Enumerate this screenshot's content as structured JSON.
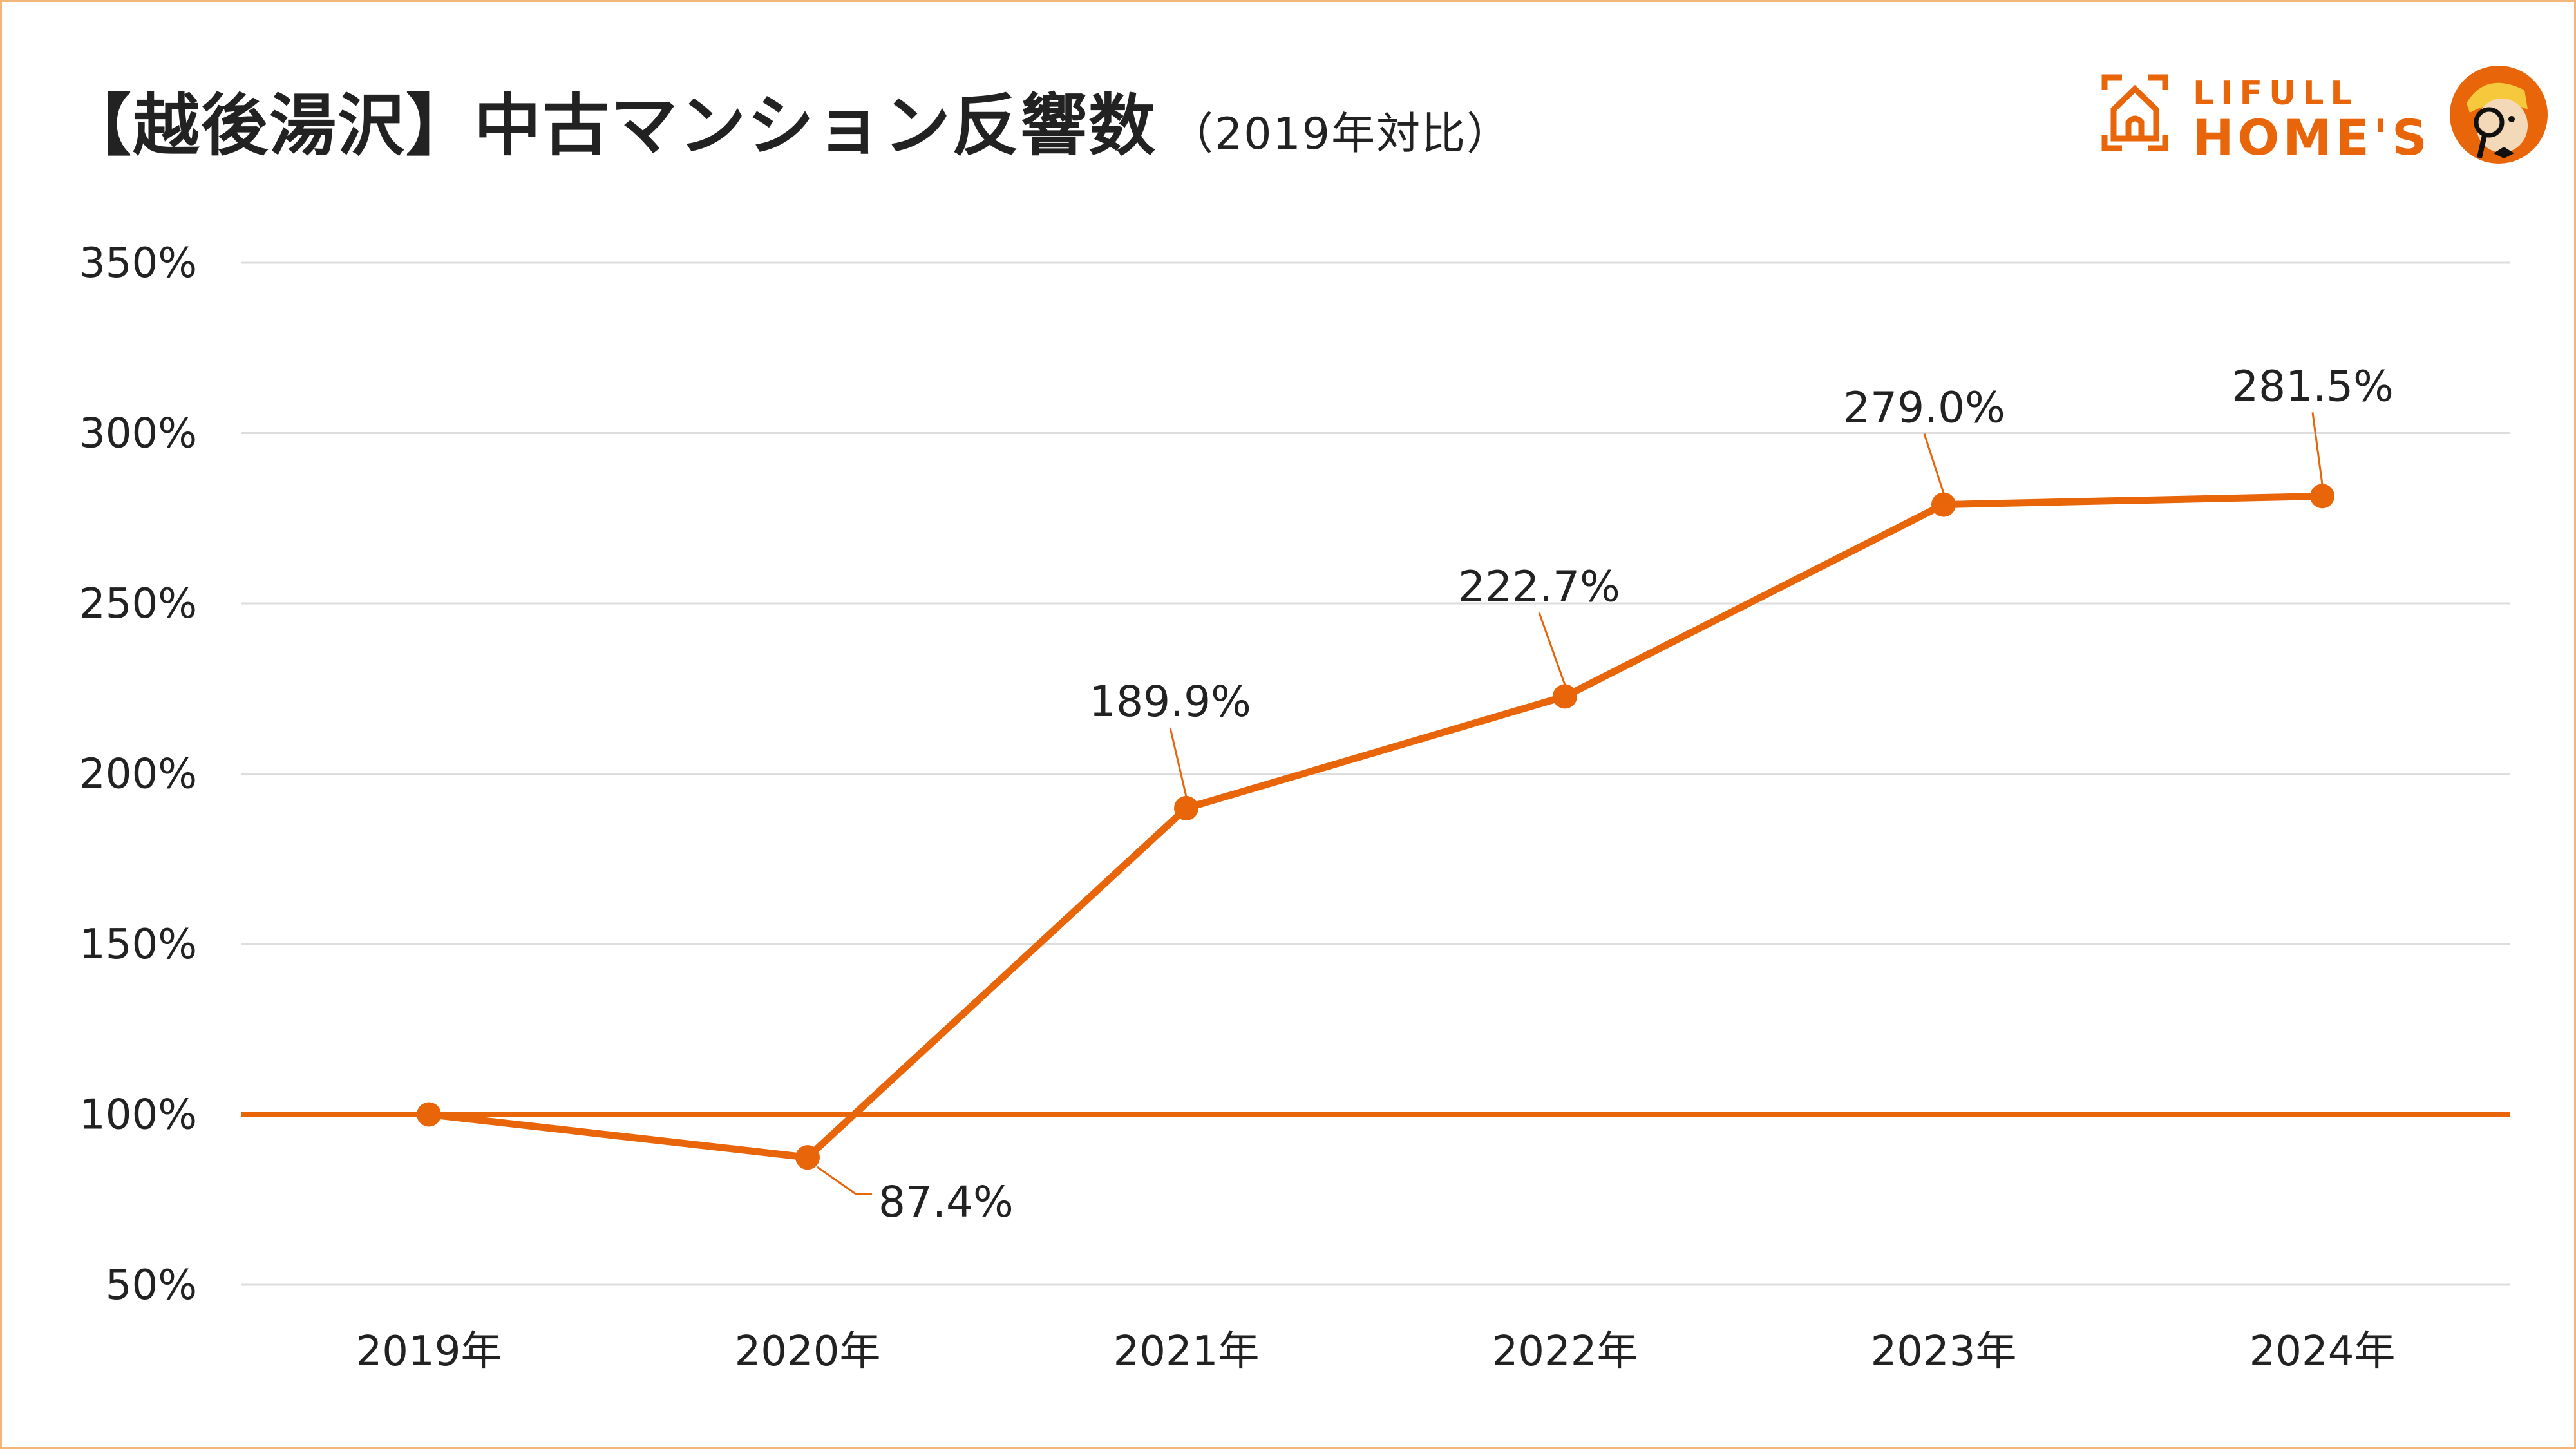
{
  "header": {
    "title": "【越後湯沢】中古マンション反響数",
    "subtitle": "（2019年対比）"
  },
  "logo": {
    "line1": "LIFULL",
    "line2": "HOME'S"
  },
  "colors": {
    "accent": "#E8650A",
    "grid": "#DDDDDD",
    "text": "#222222"
  },
  "chart_data": {
    "type": "line",
    "title": "【越後湯沢】中古マンション反響数（2019年対比）",
    "categories": [
      "2019年",
      "2020年",
      "2021年",
      "2022年",
      "2023年",
      "2024年"
    ],
    "series": [
      {
        "name": "反響数（2019年対比）",
        "values": [
          100,
          87.4,
          189.9,
          222.7,
          279.0,
          281.5
        ]
      }
    ],
    "data_labels": [
      "",
      "87.4%",
      "189.9%",
      "222.7%",
      "279.0%",
      "281.5%"
    ],
    "reference_line": 100,
    "yticks": [
      50,
      100,
      150,
      200,
      250,
      300,
      350
    ],
    "ytick_labels": [
      "50%",
      "100%",
      "150%",
      "200%",
      "250%",
      "300%",
      "350%"
    ],
    "ylim": [
      50,
      350
    ],
    "xlabel": "",
    "ylabel": "",
    "grid": true,
    "legend": "none"
  }
}
